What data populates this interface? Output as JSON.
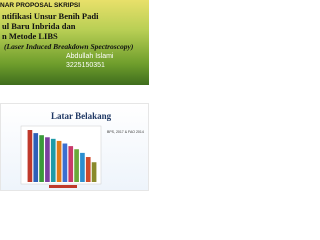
{
  "slides": [
    {
      "title_lines": [
        "NAR PROPOSAL SKRIPSI",
        "ntifikasi Unsur Benih Padi",
        "ul Baru Inbrida dan",
        "n Metode LIBS",
        "(Laser Induced Breakdown Spectroscopy)"
      ],
      "author": "Abdullah Islami",
      "student_id": "3225150351"
    },
    {
      "title": "Latar Belakang",
      "source": "BPS, 2017 & FAO 2014",
      "chart": {
        "type": "bar",
        "ylim": [
          0,
          100
        ],
        "values": [
          100,
          94,
          90,
          86,
          83,
          79,
          74,
          69,
          63,
          56,
          48,
          38
        ],
        "colors": [
          "#c0392b",
          "#2e5fb8",
          "#3a9a3a",
          "#7b3fa0",
          "#1e9aa8",
          "#e07b1a",
          "#3b6fd0",
          "#c83a6a",
          "#6aa83a",
          "#2b8fd0",
          "#d04a2b",
          "#8a8a2b"
        ]
      }
    }
  ]
}
